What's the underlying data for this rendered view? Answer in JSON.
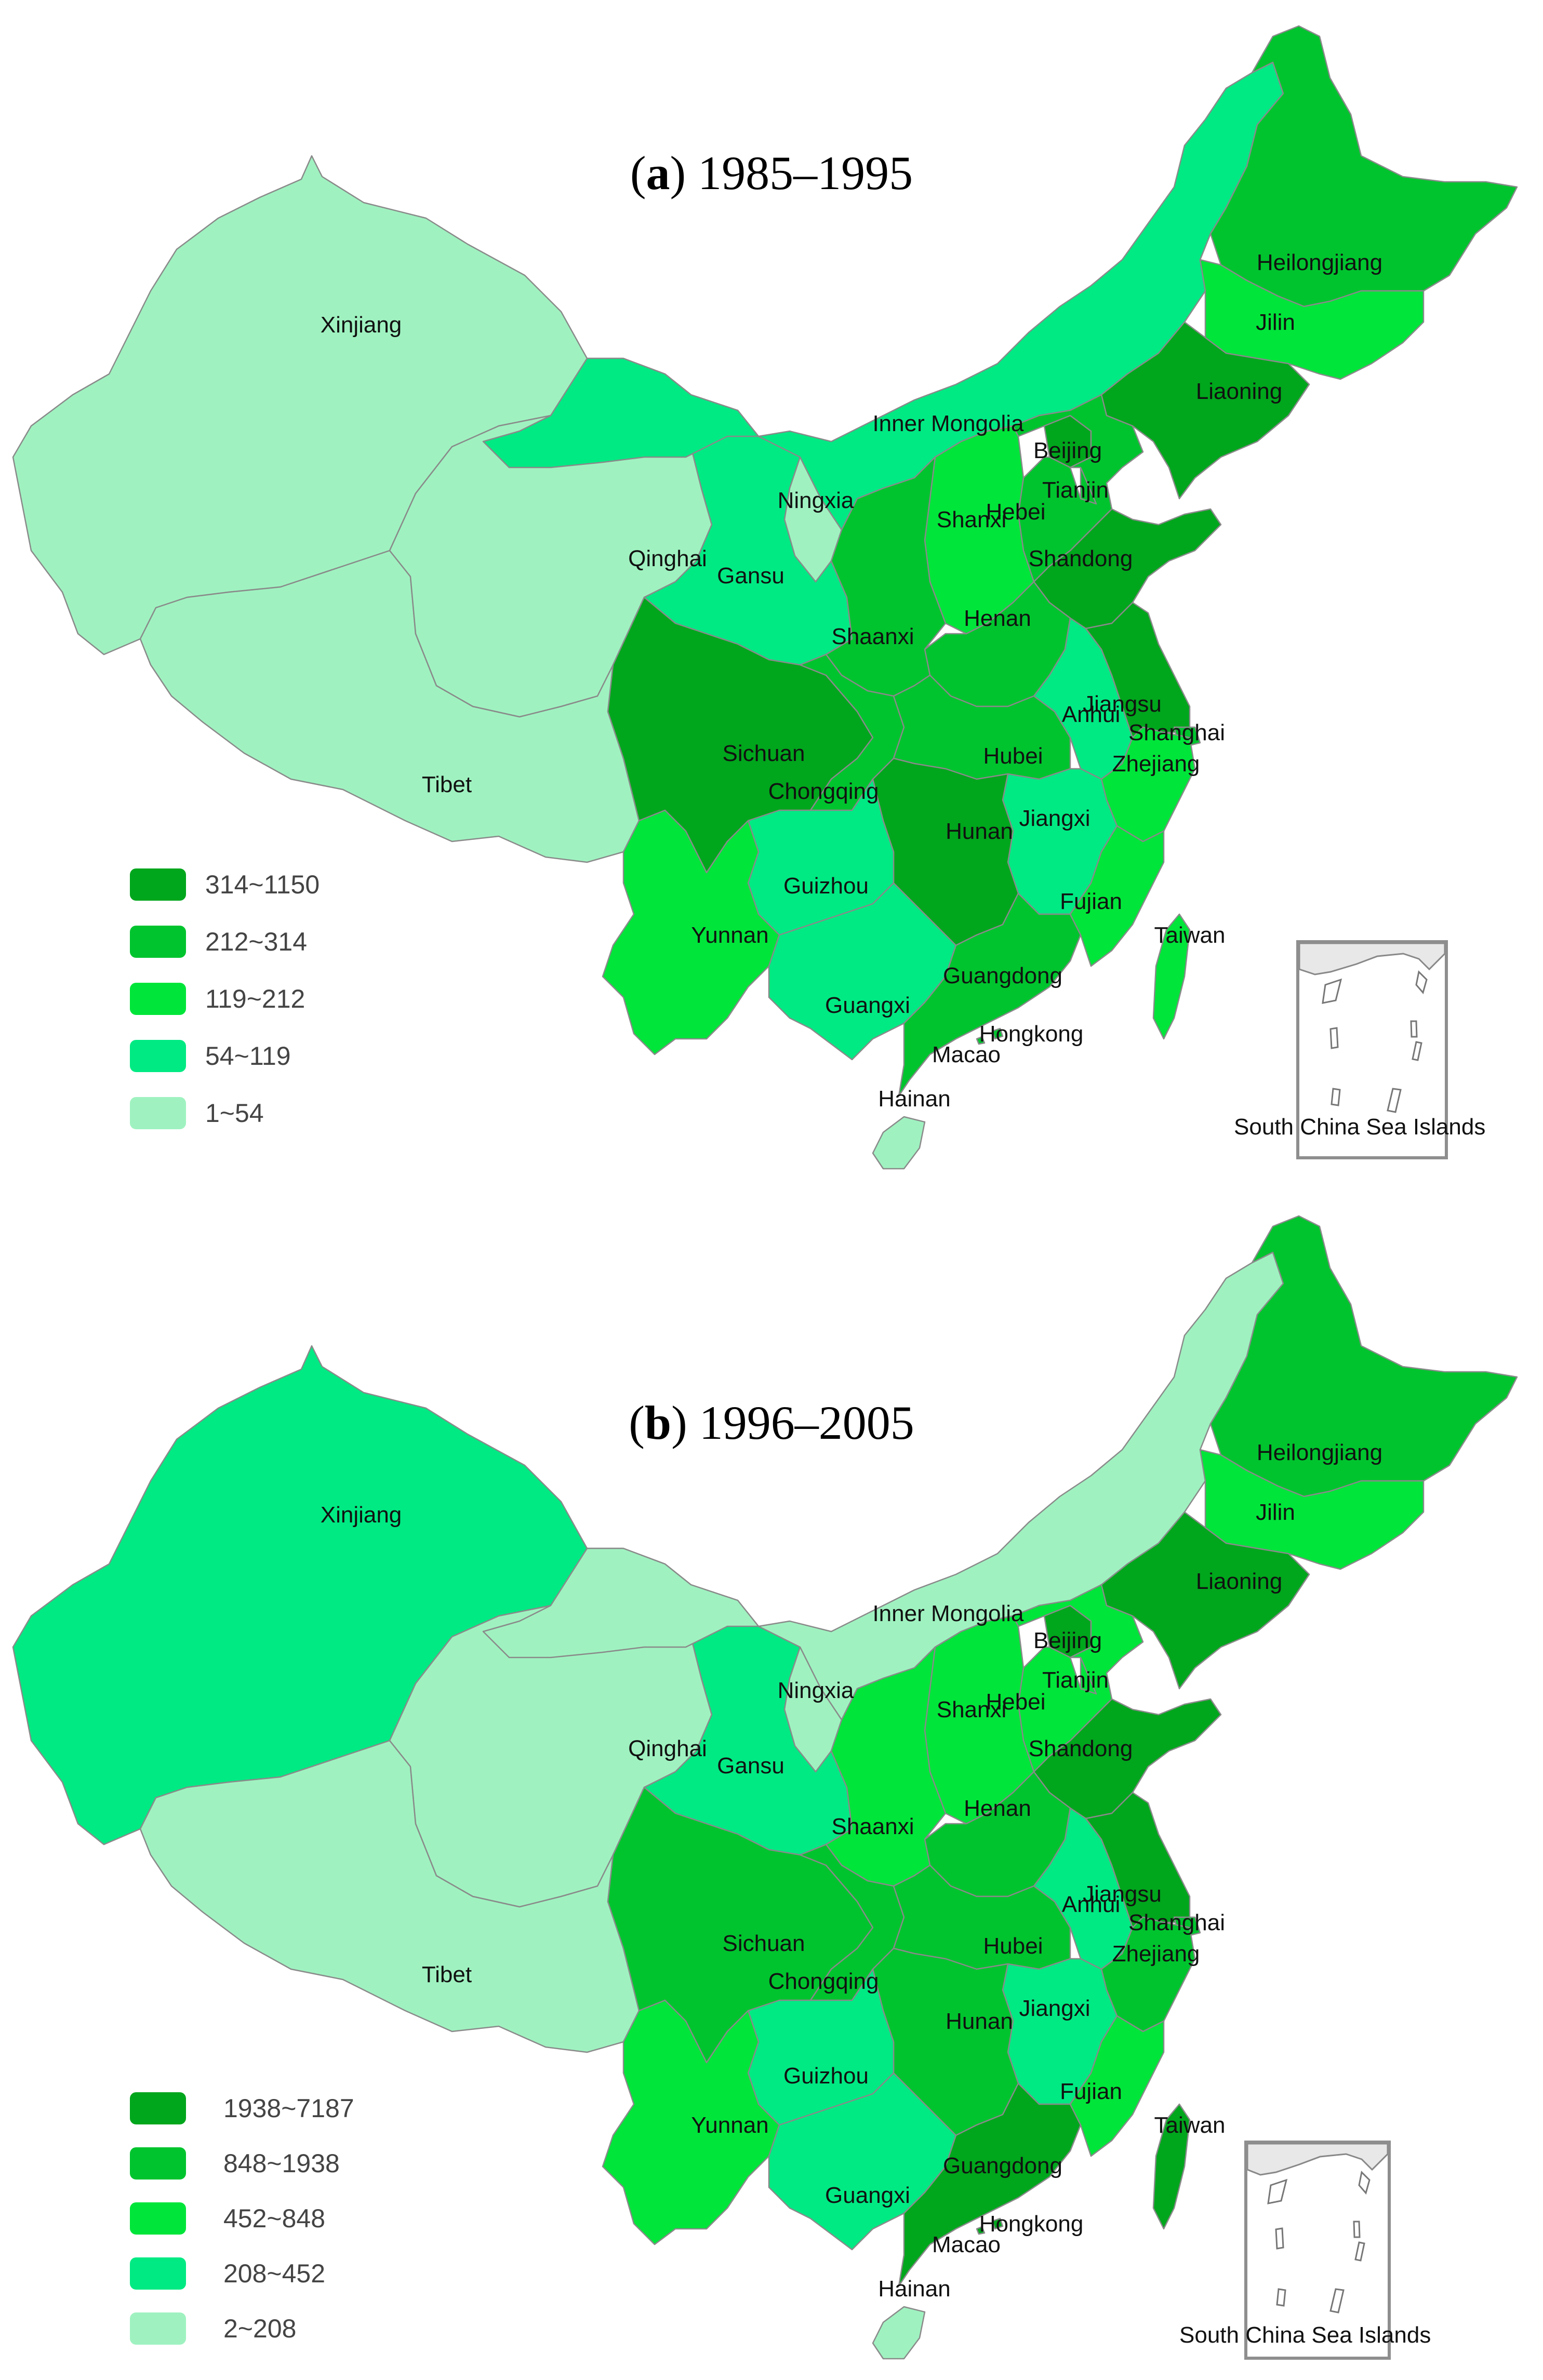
{
  "panels": [
    {
      "id": "a",
      "title_letter": "a",
      "title_period": "1985–1995",
      "legend": [
        {
          "label": "314~1150",
          "color": "#00a61c"
        },
        {
          "label": "212~314",
          "color": "#00c42e"
        },
        {
          "label": "119~212",
          "color": "#00e53a"
        },
        {
          "label": "54~119",
          "color": "#00ea83"
        },
        {
          "label": "1~54",
          "color": "#9ff2c0"
        }
      ],
      "regions": {
        "xinjiang": {
          "label": "Xinjiang",
          "level": 4
        },
        "tibet": {
          "label": "Tibet",
          "level": 4
        },
        "qinghai": {
          "label": "Qinghai",
          "level": 4
        },
        "gansu": {
          "label": "Gansu",
          "level": 3
        },
        "inner_mongolia": {
          "label": "Inner Mongolia",
          "level": 3
        },
        "ningxia": {
          "label": "Ningxia",
          "level": 4
        },
        "heilongjiang": {
          "label": "Heilongjiang",
          "level": 1
        },
        "jilin": {
          "label": "Jilin",
          "level": 2
        },
        "liaoning": {
          "label": "Liaoning",
          "level": 0
        },
        "beijing": {
          "label": "Beijing",
          "level": 0
        },
        "tianjin": {
          "label": "Tianjin",
          "level": 1
        },
        "hebei": {
          "label": "Hebei",
          "level": 1
        },
        "shanxi": {
          "label": "Shanxi",
          "level": 2
        },
        "shandong": {
          "label": "Shandong",
          "level": 0
        },
        "henan": {
          "label": "Henan",
          "level": 1
        },
        "shaanxi": {
          "label": "Shaanxi",
          "level": 1
        },
        "sichuan": {
          "label": "Sichuan",
          "level": 0
        },
        "chongqing": {
          "label": "Chongqing",
          "level": 1
        },
        "hubei": {
          "label": "Hubei",
          "level": 1
        },
        "anhui": {
          "label": "Anhui",
          "level": 3
        },
        "jiangsu": {
          "label": "Jiangsu",
          "level": 0
        },
        "shanghai": {
          "label": "Shanghai",
          "level": 1
        },
        "zhejiang": {
          "label": "Zhejiang",
          "level": 2
        },
        "jiangxi": {
          "label": "Jiangxi",
          "level": 3
        },
        "hunan": {
          "label": "Hunan",
          "level": 0
        },
        "guizhou": {
          "label": "Guizhou",
          "level": 3
        },
        "yunnan": {
          "label": "Yunnan",
          "level": 2
        },
        "guangxi": {
          "label": "Guangxi",
          "level": 3
        },
        "guangdong": {
          "label": "Guangdong",
          "level": 1
        },
        "fujian": {
          "label": "Fujian",
          "level": 2
        },
        "taiwan": {
          "label": "Taiwan",
          "level": 2
        },
        "hainan": {
          "label": "Hainan",
          "level": 4
        },
        "hongkong": {
          "label": "Hongkong",
          "level": 1
        },
        "macao": {
          "label": "Macao",
          "level": 1
        }
      },
      "inset_label": "South China Sea Islands"
    },
    {
      "id": "b",
      "title_letter": "b",
      "title_period": "1996–2005",
      "legend": [
        {
          "label": "1938~7187",
          "color": "#00a61c"
        },
        {
          "label": "848~1938",
          "color": "#00c42e"
        },
        {
          "label": "452~848",
          "color": "#00e53a"
        },
        {
          "label": "208~452",
          "color": "#00ea83"
        },
        {
          "label": "2~208",
          "color": "#9ff2c0"
        }
      ],
      "regions": {
        "xinjiang": {
          "label": "Xinjiang",
          "level": 3
        },
        "tibet": {
          "label": "Tibet",
          "level": 4
        },
        "qinghai": {
          "label": "Qinghai",
          "level": 4
        },
        "gansu": {
          "label": "Gansu",
          "level": 3
        },
        "inner_mongolia": {
          "label": "Inner Mongolia",
          "level": 4
        },
        "ningxia": {
          "label": "Ningxia",
          "level": 4
        },
        "heilongjiang": {
          "label": "Heilongjiang",
          "level": 1
        },
        "jilin": {
          "label": "Jilin",
          "level": 2
        },
        "liaoning": {
          "label": "Liaoning",
          "level": 0
        },
        "beijing": {
          "label": "Beijing",
          "level": 0
        },
        "tianjin": {
          "label": "Tianjin",
          "level": 2
        },
        "hebei": {
          "label": "Hebei",
          "level": 2
        },
        "shanxi": {
          "label": "Shanxi",
          "level": 2
        },
        "shandong": {
          "label": "Shandong",
          "level": 0
        },
        "henan": {
          "label": "Henan",
          "level": 1
        },
        "shaanxi": {
          "label": "Shaanxi",
          "level": 2
        },
        "sichuan": {
          "label": "Sichuan",
          "level": 1
        },
        "chongqing": {
          "label": "Chongqing",
          "level": 1
        },
        "hubei": {
          "label": "Hubei",
          "level": 1
        },
        "anhui": {
          "label": "Anhui",
          "level": 3
        },
        "jiangsu": {
          "label": "Jiangsu",
          "level": 0
        },
        "shanghai": {
          "label": "Shanghai",
          "level": 1
        },
        "zhejiang": {
          "label": "Zhejiang",
          "level": 1
        },
        "jiangxi": {
          "label": "Jiangxi",
          "level": 3
        },
        "hunan": {
          "label": "Hunan",
          "level": 1
        },
        "guizhou": {
          "label": "Guizhou",
          "level": 3
        },
        "yunnan": {
          "label": "Yunnan",
          "level": 2
        },
        "guangxi": {
          "label": "Guangxi",
          "level": 3
        },
        "guangdong": {
          "label": "Guangdong",
          "level": 0
        },
        "fujian": {
          "label": "Fujian",
          "level": 2
        },
        "taiwan": {
          "label": "Taiwan",
          "level": 0
        },
        "hainan": {
          "label": "Hainan",
          "level": 4
        },
        "hongkong": {
          "label": "Hongkong",
          "level": 0
        },
        "macao": {
          "label": "Macao",
          "level": 0
        }
      },
      "inset_label": "South China Sea Islands"
    }
  ]
}
